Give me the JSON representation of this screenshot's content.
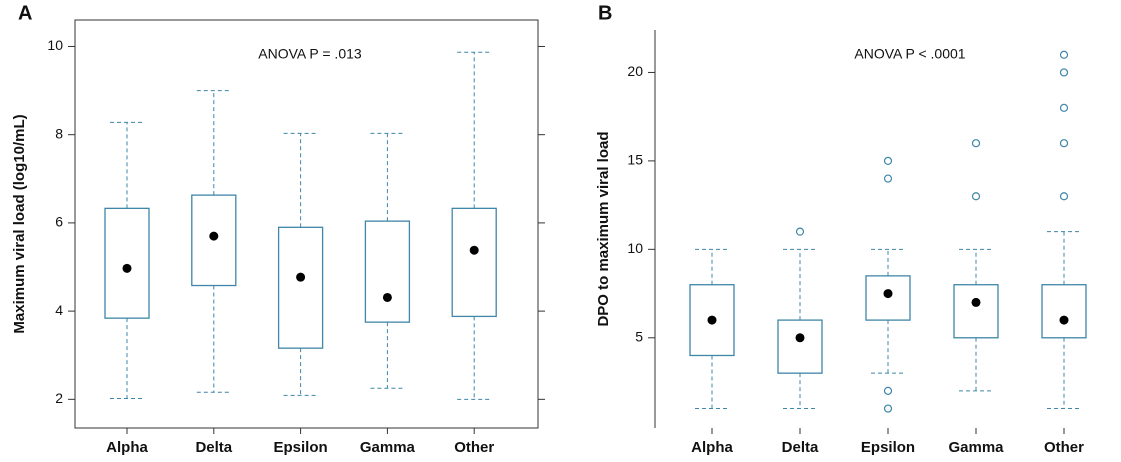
{
  "chart_data": [
    {
      "type": "box",
      "panel_label": "A",
      "annotation": "ANOVA P = .013",
      "y_label": "Maximum viral load (log10/mL)",
      "categories": [
        "Alpha",
        "Delta",
        "Epsilon",
        "Gamma",
        "Other"
      ],
      "color": "#3f86a8",
      "mean_color": "#000000",
      "frame": true,
      "whislo": [
        2.02,
        2.16,
        2.09,
        2.25,
        2.0
      ],
      "q1": [
        3.84,
        4.58,
        3.16,
        3.75,
        3.88
      ],
      "q3": [
        6.33,
        6.63,
        5.9,
        6.04,
        6.33
      ],
      "whishi": [
        8.28,
        9.0,
        8.03,
        8.03,
        9.87
      ],
      "mean": [
        4.97,
        5.7,
        4.77,
        4.31,
        5.38
      ],
      "outliers": [
        [],
        [],
        [],
        [],
        []
      ],
      "ylim": [
        1.35,
        10.6
      ],
      "yticks": [
        2,
        4,
        6,
        8,
        10
      ]
    },
    {
      "type": "box",
      "panel_label": "B",
      "annotation": "ANOVA P < .0001",
      "y_label": "DPO to maximum viral load",
      "categories": [
        "Alpha",
        "Delta",
        "Epsilon",
        "Gamma",
        "Other"
      ],
      "color": "#3f86a8",
      "mean_color": "#000000",
      "frame": false,
      "whislo": [
        1,
        1,
        3,
        2,
        1
      ],
      "q1": [
        4,
        3,
        6,
        5,
        5
      ],
      "q3": [
        8,
        6,
        8.5,
        8,
        8
      ],
      "whishi": [
        10,
        10,
        10,
        10,
        11
      ],
      "mean": [
        6,
        5,
        7.5,
        7,
        6
      ],
      "outliers": [
        [],
        [
          11
        ],
        [
          15,
          14,
          2,
          1
        ],
        [
          16,
          13
        ],
        [
          21,
          20,
          18,
          16,
          13
        ]
      ],
      "ylim": [
        -0.1,
        22.4
      ],
      "yticks": [
        5,
        10,
        15,
        20
      ]
    }
  ]
}
